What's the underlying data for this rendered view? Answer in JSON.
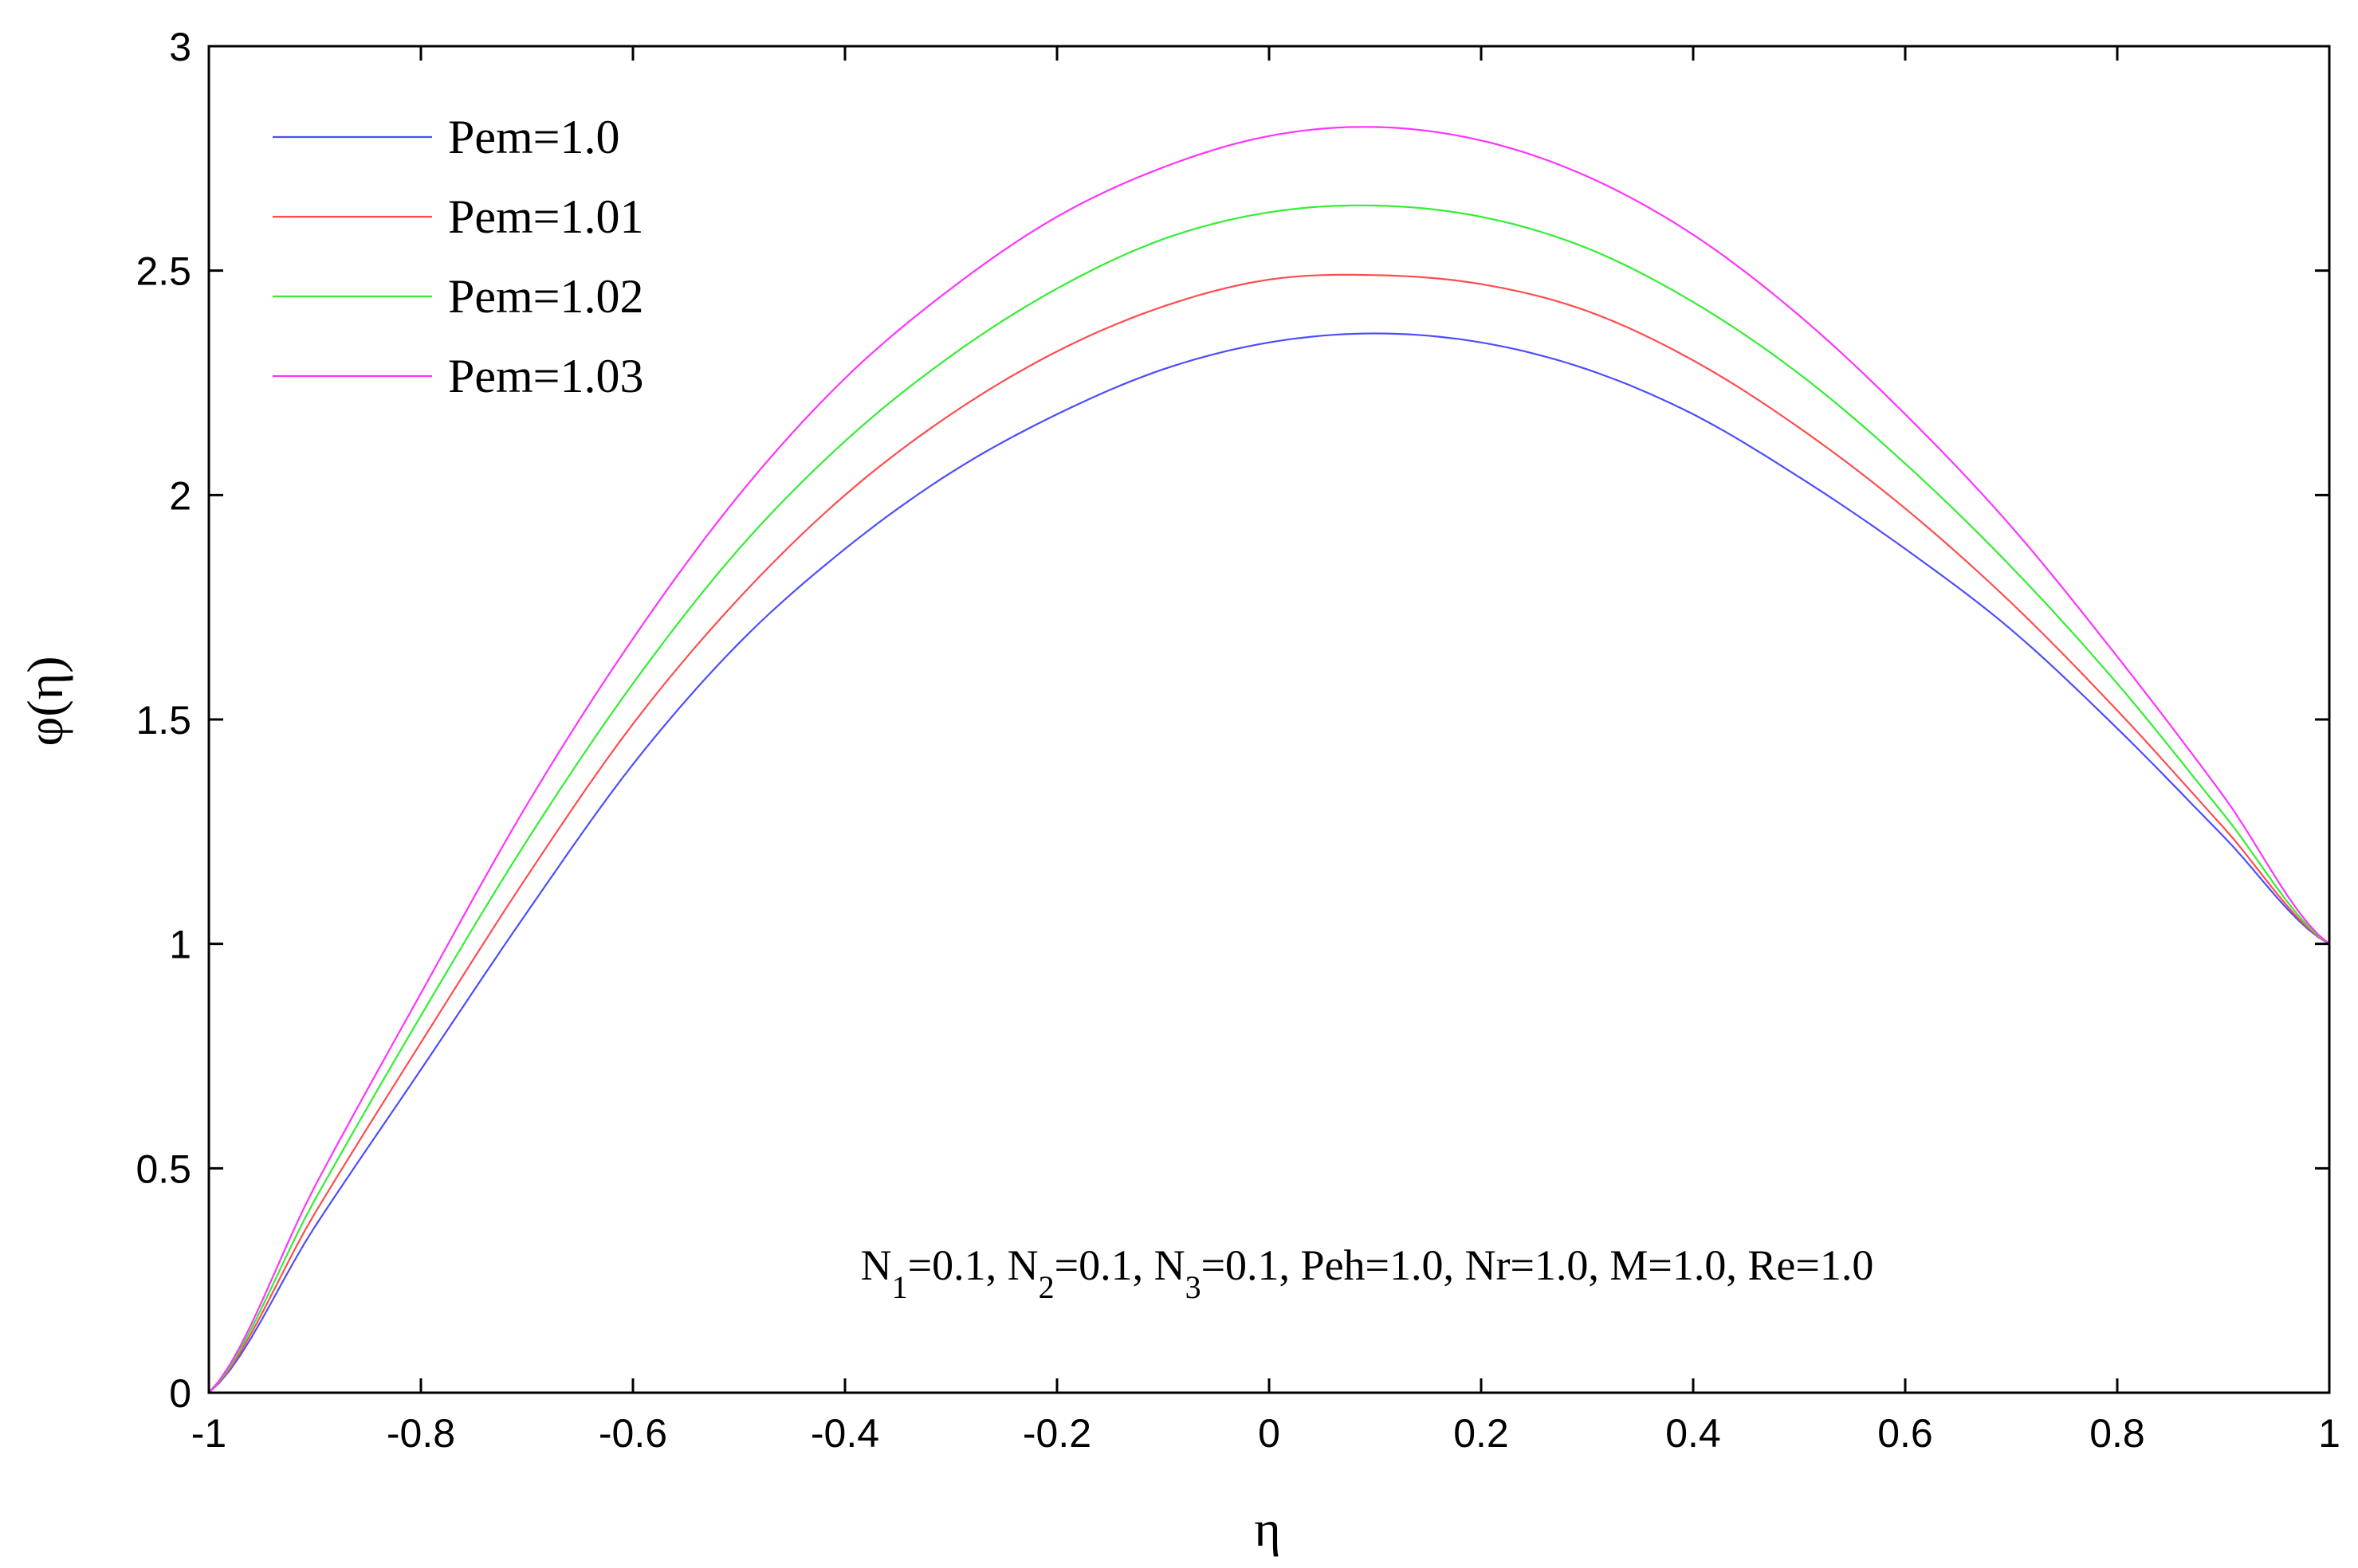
{
  "chart_data": {
    "type": "line",
    "title": "",
    "xlabel": "η",
    "ylabel": "φ(η)",
    "xlim": [
      -1,
      1
    ],
    "ylim": [
      0,
      3
    ],
    "grid": false,
    "legend_position": "top-left",
    "x_ticks": [
      -1,
      -0.8,
      -0.6,
      -0.4,
      -0.2,
      0,
      0.2,
      0.4,
      0.6,
      0.8,
      1
    ],
    "x_tick_labels": [
      "-1",
      "-0.8",
      "-0.6",
      "-0.4",
      "-0.2",
      "0",
      "0.2",
      "0.4",
      "0.6",
      "0.8",
      "1"
    ],
    "y_ticks": [
      0,
      0.5,
      1,
      1.5,
      2,
      2.5,
      3
    ],
    "y_tick_labels": [
      "0",
      "0.5",
      "1",
      "1.5",
      "2",
      "2.5",
      "3"
    ],
    "annotation": {
      "parts": [
        {
          "text": "N"
        },
        {
          "sub": "1"
        },
        {
          "text": "=0.1, N"
        },
        {
          "sub": "2"
        },
        {
          "text": "=0.1, N"
        },
        {
          "sub": "3"
        },
        {
          "text": "=0.1, Peh=1.0, Nr=1.0, M=1.0, Re=1.0"
        }
      ],
      "position": [
        0.0,
        0.28
      ]
    },
    "x": [
      -1,
      -0.9,
      -0.8,
      -0.7,
      -0.6,
      -0.5,
      -0.4,
      -0.3,
      -0.2,
      -0.1,
      0,
      0.1,
      0.2,
      0.3,
      0.4,
      0.5,
      0.6,
      0.7,
      0.8,
      0.9,
      1.0
    ],
    "series": [
      {
        "name": "Pem=1.0",
        "color": "#4d4dff",
        "values": [
          0,
          0.37,
          0.72,
          1.07,
          1.4,
          1.67,
          1.88,
          2.05,
          2.18,
          2.28,
          2.34,
          2.36,
          2.34,
          2.28,
          2.18,
          2.04,
          1.88,
          1.7,
          1.48,
          1.24,
          1.0
        ]
      },
      {
        "name": "Pem=1.01",
        "color": "#ff4d4d",
        "values": [
          0,
          0.4,
          0.78,
          1.15,
          1.49,
          1.77,
          2.0,
          2.18,
          2.32,
          2.42,
          2.48,
          2.49,
          2.47,
          2.41,
          2.3,
          2.15,
          1.97,
          1.76,
          1.52,
          1.26,
          1.0
        ]
      },
      {
        "name": "Pem=1.02",
        "color": "#33ee33",
        "values": [
          0,
          0.43,
          0.84,
          1.23,
          1.58,
          1.88,
          2.12,
          2.31,
          2.46,
          2.57,
          2.63,
          2.645,
          2.62,
          2.55,
          2.43,
          2.27,
          2.07,
          1.84,
          1.58,
          1.29,
          1.0
        ]
      },
      {
        "name": "Pem=1.03",
        "color": "#ff33ff",
        "values": [
          0,
          0.46,
          0.89,
          1.31,
          1.68,
          2.0,
          2.26,
          2.46,
          2.62,
          2.73,
          2.8,
          2.82,
          2.79,
          2.71,
          2.58,
          2.4,
          2.18,
          1.93,
          1.64,
          1.33,
          1.0
        ]
      }
    ]
  }
}
